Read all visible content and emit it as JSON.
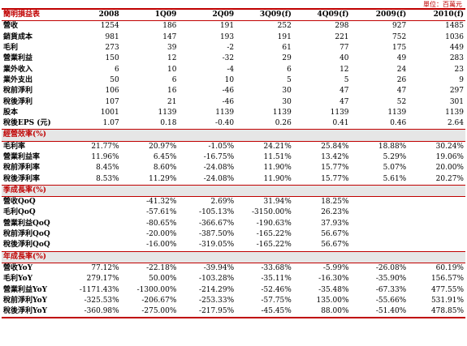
{
  "unit_note": "單位：百萬元",
  "header": [
    "簡明損益表",
    "2008",
    "1Q09",
    "2Q09",
    "3Q09(f)",
    "4Q09(f)",
    "2009(f)",
    "2010(f)"
  ],
  "income": [
    [
      "營收",
      "1254",
      "186",
      "191",
      "252",
      "298",
      "927",
      "1485"
    ],
    [
      "銷貨成本",
      "981",
      "147",
      "193",
      "191",
      "221",
      "752",
      "1036"
    ],
    [
      "毛利",
      "273",
      "39",
      "-2",
      "61",
      "77",
      "175",
      "449"
    ],
    [
      "營業利益",
      "150",
      "12",
      "-32",
      "29",
      "40",
      "49",
      "283"
    ],
    [
      "業外收入",
      "6",
      "10",
      "-4",
      "6",
      "12",
      "24",
      "23"
    ],
    [
      "業外支出",
      "50",
      "6",
      "10",
      "5",
      "5",
      "26",
      "9"
    ],
    [
      "稅前淨利",
      "106",
      "16",
      "-46",
      "30",
      "47",
      "47",
      "297"
    ],
    [
      "稅後淨利",
      "107",
      "21",
      "-46",
      "30",
      "47",
      "52",
      "301"
    ],
    [
      "股本",
      "1001",
      "1139",
      "1139",
      "1139",
      "1139",
      "1139",
      "1139"
    ],
    [
      "稅後EPS (元)",
      "1.07",
      "0.18",
      "-0.40",
      "0.26",
      "0.41",
      "0.46",
      "2.64"
    ]
  ],
  "margin_title": "經營效率(%)",
  "margin": [
    [
      "毛利率",
      "21.77%",
      "20.97%",
      "-1.05%",
      "24.21%",
      "25.84%",
      "18.88%",
      "30.24%"
    ],
    [
      "營業利益率",
      "11.96%",
      "6.45%",
      "-16.75%",
      "11.51%",
      "13.42%",
      "5.29%",
      "19.06%"
    ],
    [
      "稅前淨利率",
      "8.45%",
      "8.60%",
      "-24.08%",
      "11.90%",
      "15.77%",
      "5.07%",
      "20.00%"
    ],
    [
      "稅後淨利率",
      "8.53%",
      "11.29%",
      "-24.08%",
      "11.90%",
      "15.77%",
      "5.61%",
      "20.27%"
    ]
  ],
  "qoq_title": "季成長率(%)",
  "qoq": [
    [
      "營收QoQ",
      "",
      "-41.32%",
      "2.69%",
      "31.94%",
      "18.25%",
      "",
      ""
    ],
    [
      "毛利QoQ",
      "",
      "-57.61%",
      "-105.13%",
      "-3150.00%",
      "26.23%",
      "",
      ""
    ],
    [
      "營業利益QoQ",
      "",
      "-80.65%",
      "-366.67%",
      "-190.63%",
      "37.93%",
      "",
      ""
    ],
    [
      "稅前淨利QoQ",
      "",
      "-20.00%",
      "-387.50%",
      "-165.22%",
      "56.67%",
      "",
      ""
    ],
    [
      "稅後淨利QoQ",
      "",
      "-16.00%",
      "-319.05%",
      "-165.22%",
      "56.67%",
      "",
      ""
    ]
  ],
  "yoy_title": "年成長率(%)",
  "yoy": [
    [
      "營收YoY",
      "77.12%",
      "-22.18%",
      "-39.94%",
      "-33.68%",
      "-5.99%",
      "-26.08%",
      "60.19%"
    ],
    [
      "毛利YoY",
      "279.17%",
      "50.00%",
      "-103.28%",
      "-35.11%",
      "-16.30%",
      "-35.90%",
      "156.57%"
    ],
    [
      "營業利益YoY",
      "-1171.43%",
      "-1300.00%",
      "-214.29%",
      "-52.46%",
      "-35.48%",
      "-67.33%",
      "477.55%"
    ],
    [
      "稅前淨利YoY",
      "-325.53%",
      "-206.67%",
      "-253.33%",
      "-57.75%",
      "135.00%",
      "-55.66%",
      "531.91%"
    ],
    [
      "稅後淨利YoY",
      "-360.98%",
      "-275.00%",
      "-217.95%",
      "-45.45%",
      "88.00%",
      "-51.40%",
      "478.85%"
    ]
  ]
}
